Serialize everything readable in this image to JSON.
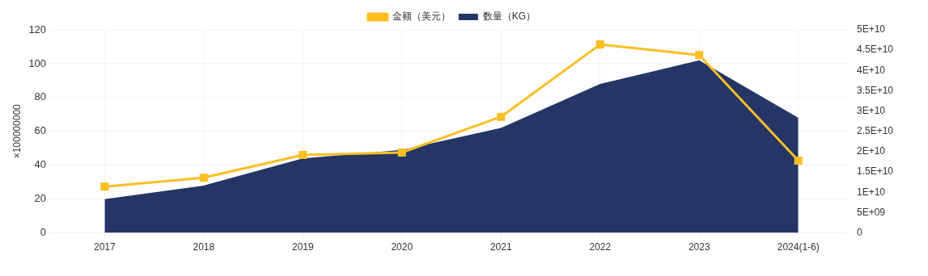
{
  "chart_data": {
    "type": "area",
    "ylabel": "×100000000",
    "categories": [
      "2017",
      "2018",
      "2019",
      "2020",
      "2021",
      "2022",
      "2023",
      "2024(1-6)"
    ],
    "series": [
      {
        "name": "数量（KG）",
        "color": "#243566",
        "values": [
          20,
          28,
          44,
          49,
          62,
          88,
          102,
          68
        ]
      },
      {
        "name": "金额（美元）",
        "color": "#fbbf24",
        "type": "line",
        "axis": "y2",
        "marker": "square",
        "values": [
          11400000000,
          13600000000,
          19200000000,
          19800000000,
          28600000000,
          46400000000,
          43800000000,
          17800000000
        ]
      }
    ],
    "ylim": [
      0,
      120
    ],
    "yticks": [
      0,
      20,
      40,
      60,
      80,
      100,
      120
    ],
    "y2lim": [
      0,
      50000000000
    ],
    "y2ticks": [
      0,
      {
        "value": 5000000000,
        "label": "5E+09"
      },
      {
        "value": 10000000000,
        "label": "1E+10"
      },
      {
        "value": 15000000000,
        "label": "1.5E+10"
      },
      {
        "value": 20000000000,
        "label": "2E+10"
      },
      {
        "value": 25000000000,
        "label": "2.5E+10"
      },
      {
        "value": 30000000000,
        "label": "3E+10"
      },
      {
        "value": 35000000000,
        "label": "3.5E+10"
      },
      {
        "value": 40000000000,
        "label": "4E+10"
      },
      {
        "value": 45000000000,
        "label": "4.5E+10"
      },
      {
        "value": 50000000000,
        "label": "5E+10"
      }
    ],
    "grid": true,
    "legend": "top"
  }
}
